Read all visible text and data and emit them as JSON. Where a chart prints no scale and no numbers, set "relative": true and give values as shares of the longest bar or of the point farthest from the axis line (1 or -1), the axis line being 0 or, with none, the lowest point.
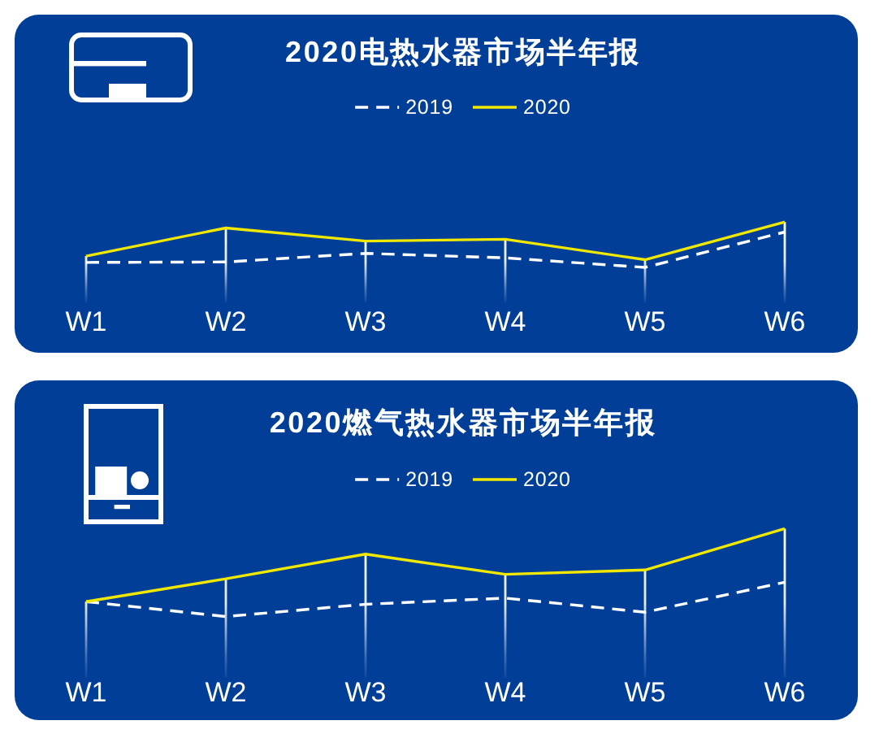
{
  "chart_data": [
    {
      "type": "line",
      "title": "2020电热水器市场半年报",
      "categories": [
        "W1",
        "W2",
        "W3",
        "W4",
        "W5",
        "W6"
      ],
      "relative": true,
      "legend": "top",
      "grid": "x",
      "series": [
        {
          "name": "2019",
          "color": "#ffffff",
          "line_style": "dashed",
          "values": [
            0.11,
            0.12,
            0.31,
            0.21,
            0,
            0.78
          ]
        },
        {
          "name": "2020",
          "color": "#f0e800",
          "line_style": "solid",
          "values": [
            0.25,
            0.87,
            0.58,
            0.62,
            0.17,
            1
          ]
        }
      ]
    },
    {
      "type": "line",
      "title": "2020燃气热水器市场半年报",
      "categories": [
        "W1",
        "W2",
        "W3",
        "W4",
        "W5",
        "W6"
      ],
      "relative": true,
      "legend": "top",
      "grid": "x",
      "series": [
        {
          "name": "2019",
          "color": "#ffffff",
          "line_style": "dashed",
          "values": [
            0.17,
            0,
            0.14,
            0.21,
            0.05,
            0.39
          ]
        },
        {
          "name": "2020",
          "color": "#f0e800",
          "line_style": "solid",
          "values": [
            0.17,
            0.43,
            0.71,
            0.48,
            0.53,
            1
          ]
        }
      ]
    }
  ]
}
